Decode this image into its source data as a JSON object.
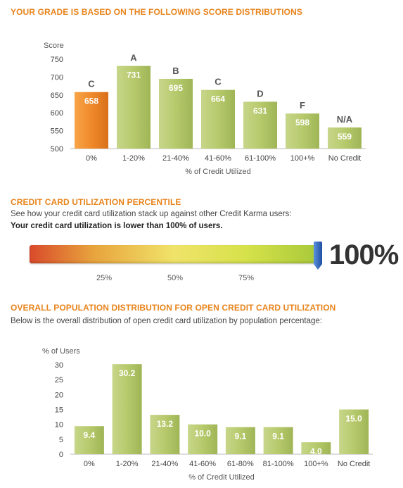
{
  "section1": {
    "title": "YOUR GRADE IS BASED ON THE FOLLOWING SCORE DISTRIBUTIONS"
  },
  "section2": {
    "title": "CREDIT CARD UTILIZATION PERCENTILE",
    "description": "See how your credit card utilization stack up against other Credit Karma users:",
    "statement": "Your credit card utilization is lower than 100% of users.",
    "percentile_label": "100%",
    "percentile_value": 100,
    "ticks": [
      "25%",
      "50%",
      "75%"
    ]
  },
  "section3": {
    "title": "OVERALL POPULATION DISTRIBUTION FOR OPEN CREDIT CARD UTILIZATION",
    "description": "Below is the overall distribution of open credit card utilization by population percentage:"
  },
  "colors": {
    "accent": "#e8841c",
    "bar_green": "#b6ca6c",
    "bar_orange": "#f0892a"
  },
  "chart_data": [
    {
      "type": "bar",
      "ylabel": "Score",
      "xlabel": "% of Credit Utilized",
      "ylim": [
        500,
        750
      ],
      "yticks": [
        500,
        550,
        600,
        650,
        700,
        750
      ],
      "categories": [
        "0%",
        "1-20%",
        "21-40%",
        "41-60%",
        "61-100%",
        "100+%",
        "No Credit"
      ],
      "values": [
        658,
        731,
        695,
        664,
        631,
        598,
        559
      ],
      "grades": [
        "C",
        "A",
        "B",
        "C",
        "D",
        "F",
        "N/A"
      ],
      "highlight_index": 0
    },
    {
      "type": "bar",
      "ylabel": "% of Users",
      "xlabel": "% of Credit Utilized",
      "ylim": [
        0,
        30
      ],
      "yticks": [
        0,
        5,
        10,
        15,
        20,
        25,
        30
      ],
      "categories": [
        "0%",
        "1-20%",
        "21-40%",
        "41-60%",
        "61-80%",
        "81-100%",
        "100+%",
        "No Credit"
      ],
      "values": [
        9.4,
        30.2,
        13.2,
        10.0,
        9.1,
        9.1,
        4.0,
        15.0
      ],
      "value_labels": [
        "9.4",
        "30.2",
        "13.2",
        "10.0",
        "9.1",
        "9.1",
        "4.0",
        "15.0"
      ]
    }
  ]
}
